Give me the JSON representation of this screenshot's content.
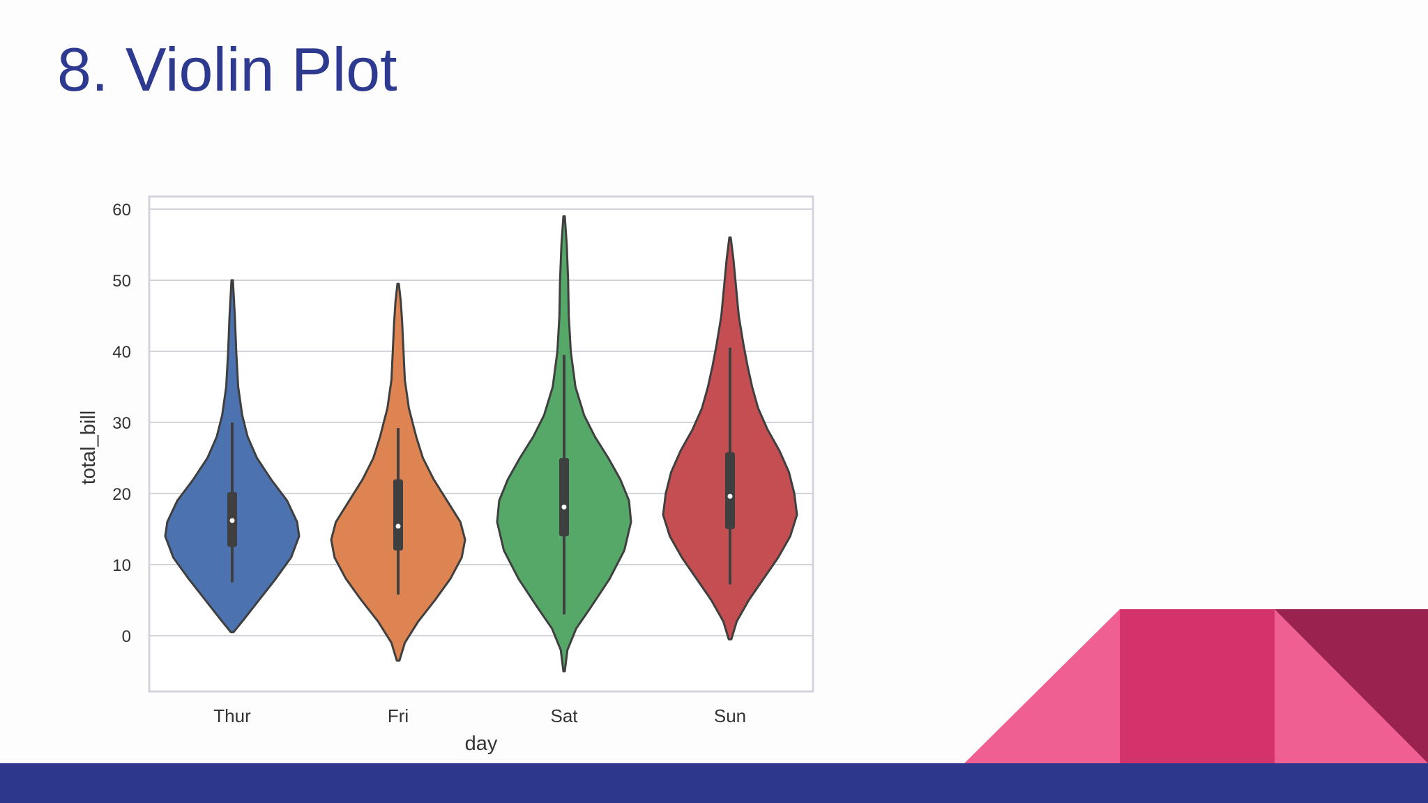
{
  "slide": {
    "title": "8. Violin Plot"
  },
  "colors": {
    "title": "#2d3a8f",
    "bottom_bar": "#2d388c",
    "deco_light_pink": "#ef5f91",
    "deco_mid_pink": "#d3326a",
    "deco_dark": "#9a224f"
  },
  "chart_data": {
    "type": "violin",
    "xlabel": "day",
    "ylabel": "total_bill",
    "categories": [
      "Thur",
      "Fri",
      "Sat",
      "Sun"
    ],
    "ylim": [
      -8,
      62
    ],
    "yticks": [
      0,
      10,
      20,
      30,
      40,
      50,
      60
    ],
    "grid": true,
    "series": [
      {
        "category": "Thur",
        "color": "#4c72b0",
        "min": 0.5,
        "max": 50,
        "q1": 12.5,
        "median": 16.2,
        "q3": 20.2,
        "whisker_low": 7.5,
        "whisker_high": 30,
        "density": [
          [
            0.5,
            0.02
          ],
          [
            2,
            0.15
          ],
          [
            5,
            0.4
          ],
          [
            8,
            0.65
          ],
          [
            11,
            0.88
          ],
          [
            14,
            1.0
          ],
          [
            16,
            0.97
          ],
          [
            19,
            0.82
          ],
          [
            22,
            0.58
          ],
          [
            25,
            0.37
          ],
          [
            28,
            0.23
          ],
          [
            31,
            0.15
          ],
          [
            35,
            0.09
          ],
          [
            40,
            0.06
          ],
          [
            45,
            0.04
          ],
          [
            50,
            0.01
          ]
        ]
      },
      {
        "category": "Fri",
        "color": "#dd8452",
        "min": -3.5,
        "max": 49.5,
        "q1": 12,
        "median": 15.4,
        "q3": 22,
        "whisker_low": 5.8,
        "whisker_high": 29.2,
        "density": [
          [
            -3.5,
            0.02
          ],
          [
            -1,
            0.1
          ],
          [
            2,
            0.3
          ],
          [
            5,
            0.55
          ],
          [
            8,
            0.78
          ],
          [
            11,
            0.95
          ],
          [
            13.5,
            1.0
          ],
          [
            16,
            0.93
          ],
          [
            19,
            0.73
          ],
          [
            22,
            0.53
          ],
          [
            25,
            0.37
          ],
          [
            28,
            0.27
          ],
          [
            32,
            0.16
          ],
          [
            36,
            0.1
          ],
          [
            40,
            0.08
          ],
          [
            44,
            0.06
          ],
          [
            47,
            0.04
          ],
          [
            49.5,
            0.01
          ]
        ]
      },
      {
        "category": "Sat",
        "color": "#55a868",
        "min": -5,
        "max": 59,
        "q1": 14,
        "median": 18.1,
        "q3": 25,
        "whisker_low": 3,
        "whisker_high": 39.5,
        "density": [
          [
            -5,
            0.01
          ],
          [
            -2,
            0.05
          ],
          [
            1,
            0.18
          ],
          [
            4,
            0.4
          ],
          [
            8,
            0.68
          ],
          [
            12,
            0.9
          ],
          [
            16,
            1.0
          ],
          [
            19,
            0.97
          ],
          [
            22,
            0.84
          ],
          [
            25,
            0.66
          ],
          [
            28,
            0.46
          ],
          [
            31,
            0.3
          ],
          [
            35,
            0.17
          ],
          [
            40,
            0.1
          ],
          [
            45,
            0.07
          ],
          [
            50,
            0.06
          ],
          [
            55,
            0.04
          ],
          [
            59,
            0.01
          ]
        ]
      },
      {
        "category": "Sun",
        "color": "#c44e52",
        "min": -0.5,
        "max": 56,
        "q1": 15,
        "median": 19.6,
        "q3": 25.8,
        "whisker_low": 7.2,
        "whisker_high": 40.5,
        "density": [
          [
            -0.5,
            0.02
          ],
          [
            2,
            0.1
          ],
          [
            5,
            0.28
          ],
          [
            8,
            0.5
          ],
          [
            11,
            0.72
          ],
          [
            14,
            0.9
          ],
          [
            17,
            1.0
          ],
          [
            20,
            0.96
          ],
          [
            23,
            0.88
          ],
          [
            26,
            0.74
          ],
          [
            29,
            0.56
          ],
          [
            32,
            0.42
          ],
          [
            35,
            0.33
          ],
          [
            38,
            0.26
          ],
          [
            41,
            0.2
          ],
          [
            45,
            0.13
          ],
          [
            50,
            0.08
          ],
          [
            53,
            0.05
          ],
          [
            56,
            0.01
          ]
        ]
      }
    ]
  }
}
